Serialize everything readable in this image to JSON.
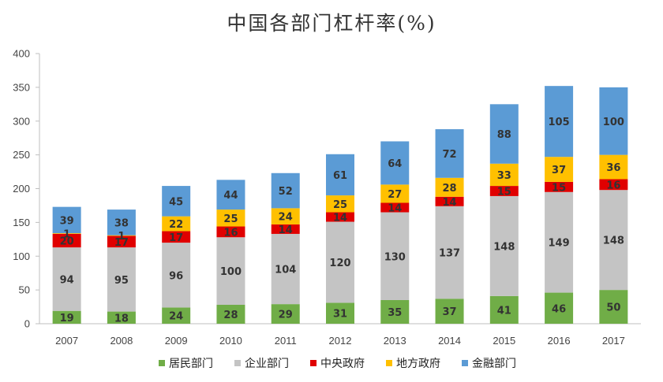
{
  "chart_data": {
    "type": "bar",
    "stacked": true,
    "title": "中国各部门杠杆率(%)",
    "xlabel": "",
    "ylabel": "",
    "ylim": [
      0,
      400
    ],
    "yticks": [
      0,
      50,
      100,
      150,
      200,
      250,
      300,
      350,
      400
    ],
    "grid": false,
    "legend_position": "bottom",
    "categories": [
      "2007",
      "2008",
      "2009",
      "2010",
      "2011",
      "2012",
      "2013",
      "2014",
      "2015",
      "2016",
      "2017"
    ],
    "series": [
      {
        "name": "居民部门",
        "color": "#70ad47",
        "values": [
          19,
          18,
          24,
          28,
          29,
          31,
          35,
          37,
          41,
          46,
          50
        ],
        "labels": [
          "19",
          "18",
          "24",
          "28",
          "29",
          "31",
          "35",
          "37",
          "41",
          "46",
          "50"
        ]
      },
      {
        "name": "企业部门",
        "color": "#c4c4c4",
        "values": [
          94,
          95,
          96,
          100,
          104,
          120,
          130,
          137,
          148,
          149,
          148
        ],
        "labels": [
          "94",
          "95",
          "96",
          "100",
          "104",
          "120",
          "130",
          "137",
          "148",
          "149",
          "148"
        ]
      },
      {
        "name": "中央政府",
        "color": "#e00000",
        "values": [
          20,
          17,
          17,
          16,
          14,
          14,
          14,
          14,
          15,
          15,
          16
        ],
        "labels": [
          "20",
          "17",
          "17",
          "16",
          "14",
          "14",
          "14",
          "14",
          "15",
          "15",
          "16"
        ]
      },
      {
        "name": "地方政府",
        "color": "#ffc000",
        "values": [
          1,
          1,
          22,
          25,
          24,
          25,
          27,
          28,
          33,
          37,
          36
        ],
        "labels": [
          "1",
          "1",
          "22",
          "25",
          "24",
          "25",
          "27",
          "28",
          "33",
          "37",
          "36"
        ]
      },
      {
        "name": "金融部门",
        "color": "#5b9bd5",
        "values": [
          39,
          38,
          45,
          44,
          52,
          61,
          64,
          72,
          88,
          105,
          100
        ],
        "labels": [
          "39",
          "38",
          "45",
          "44",
          "52",
          "61",
          "64",
          "72",
          "88",
          "105",
          "100"
        ]
      }
    ]
  }
}
